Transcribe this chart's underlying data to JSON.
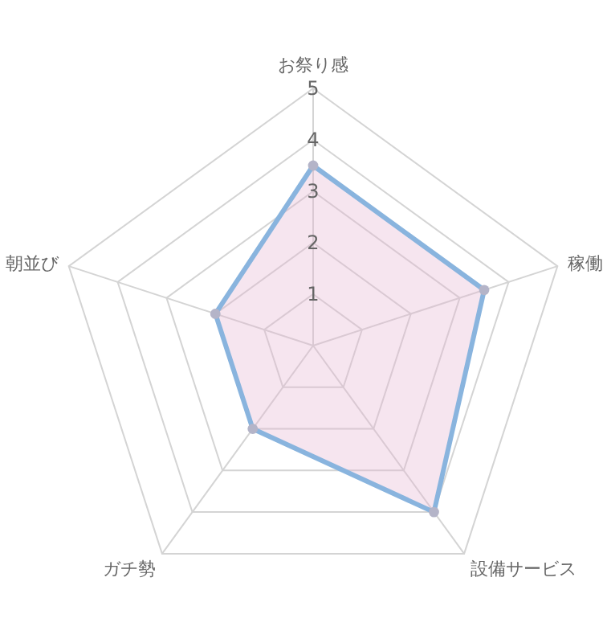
{
  "chart_data": {
    "type": "radar",
    "categories": [
      "お祭り感",
      "稼働",
      "設備サービス",
      "ガチ勢",
      "朝並び"
    ],
    "series": [
      {
        "color": "#89b4de",
        "values": [
          3.5,
          3.5,
          4,
          2,
          2
        ]
      }
    ],
    "ylim": [
      0,
      5
    ],
    "yticks": [
      1,
      2,
      3,
      4,
      5
    ],
    "grid": true,
    "marker": "circle"
  }
}
